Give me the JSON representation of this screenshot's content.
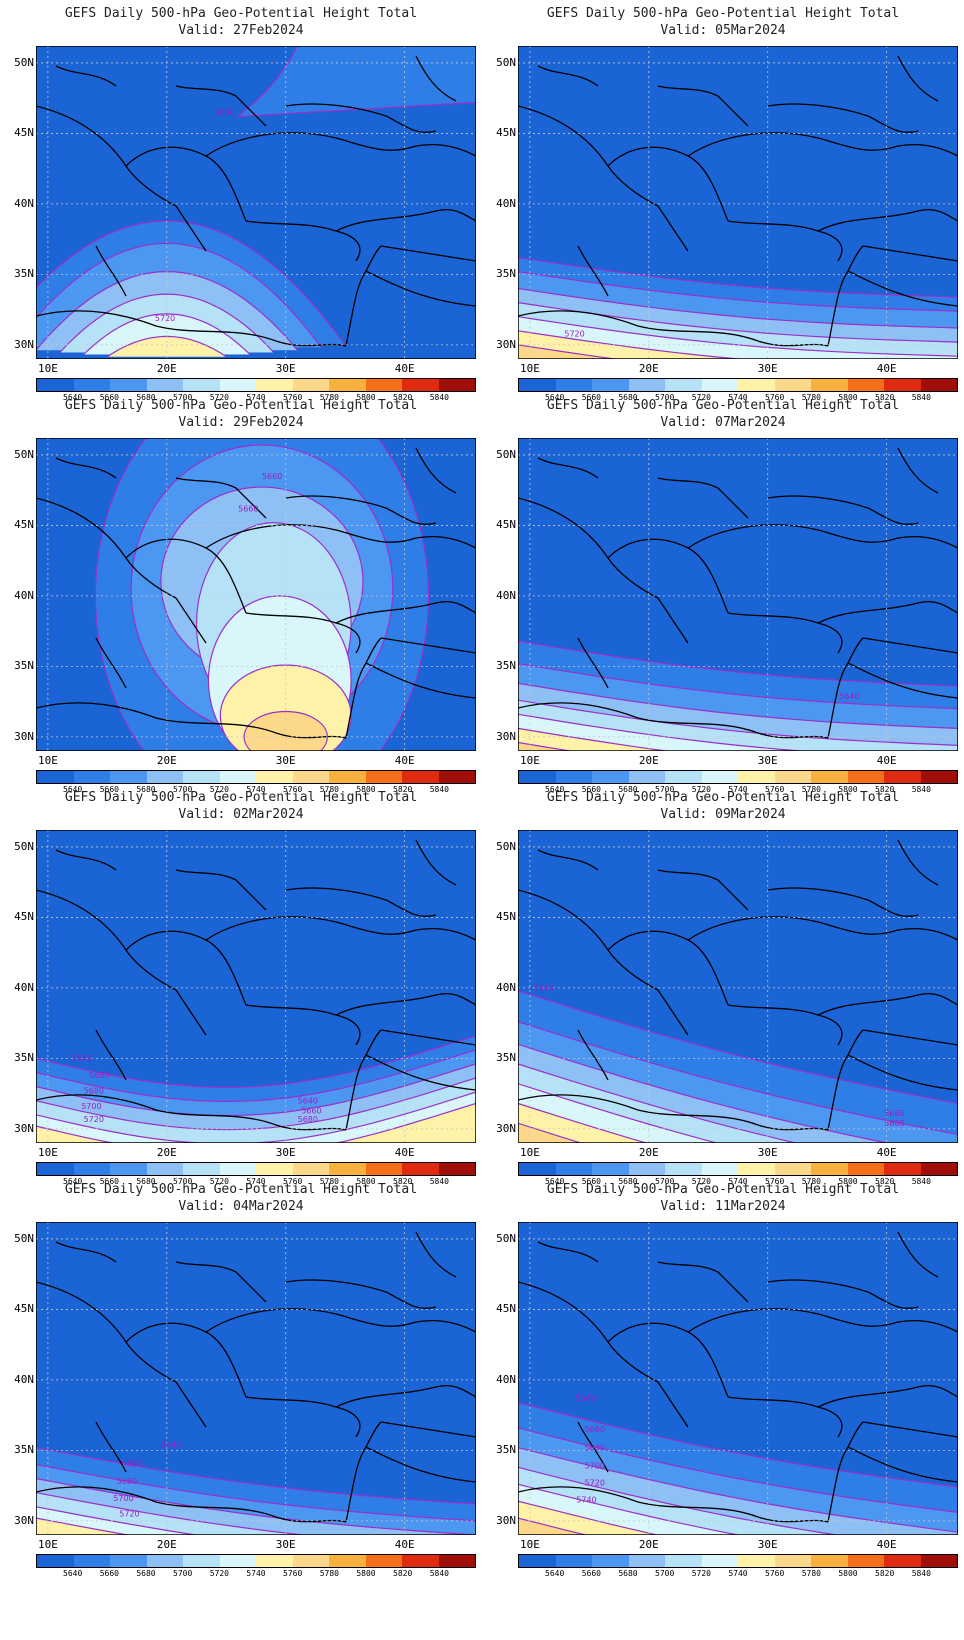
{
  "figure": {
    "panel_title": "GEFS Daily 500-hPa Geo-Potential Height Total",
    "lat_ticks": [
      "50N",
      "45N",
      "40N",
      "35N",
      "30N"
    ],
    "lon_ticks": [
      "10E",
      "20E",
      "30E",
      "40E"
    ],
    "colorbar": {
      "levels": [
        "5640",
        "5660",
        "5680",
        "5700",
        "5720",
        "5740",
        "5760",
        "5780",
        "5800",
        "5820",
        "5840"
      ],
      "colors": [
        "#1a64d6",
        "#2f7ee8",
        "#4b97f2",
        "#8fc0f5",
        "#b6e2f8",
        "#d9f6fb",
        "#fdf2a8",
        "#fcd98a",
        "#f8b040",
        "#f56f18",
        "#e02a10",
        "#a00e0a"
      ]
    }
  },
  "panels": [
    {
      "valid": "Valid: 27Feb2024",
      "labels": [
        {
          "text": "5660",
          "x": 24,
          "y": 46.3
        },
        {
          "text": "5720",
          "x": 19,
          "y": 31.7
        }
      ]
    },
    {
      "valid": "Valid: 05Mar2024",
      "labels": [
        {
          "text": "5720",
          "x": 12.9,
          "y": 30.6
        }
      ]
    },
    {
      "valid": "Valid: 29Feb2024",
      "labels": [
        {
          "text": "5660",
          "x": 28,
          "y": 48.3
        },
        {
          "text": "5660",
          "x": 26,
          "y": 46.0
        }
      ]
    },
    {
      "valid": "Valid: 07Mar2024",
      "labels": [
        {
          "text": "5640",
          "x": 36,
          "y": 32.7
        }
      ]
    },
    {
      "valid": "Valid: 02Mar2024",
      "labels": [
        {
          "text": "5640",
          "x": 12,
          "y": 34.8
        },
        {
          "text": "5660",
          "x": 13.5,
          "y": 33.6
        },
        {
          "text": "5680",
          "x": 13,
          "y": 32.5
        },
        {
          "text": "5700",
          "x": 12.8,
          "y": 31.4
        },
        {
          "text": "5720",
          "x": 13,
          "y": 30.5
        },
        {
          "text": "5640",
          "x": 31,
          "y": 31.8
        },
        {
          "text": "5660",
          "x": 31.3,
          "y": 31.1
        },
        {
          "text": "5680",
          "x": 31,
          "y": 30.5
        }
      ]
    },
    {
      "valid": "Valid: 09Mar2024",
      "labels": [
        {
          "text": "5640",
          "x": 10.3,
          "y": 39.8
        },
        {
          "text": "5660",
          "x": 39.8,
          "y": 30.9
        },
        {
          "text": "5680",
          "x": 39.8,
          "y": 30.2
        }
      ]
    },
    {
      "valid": "Valid: 04Mar2024",
      "labels": [
        {
          "text": "5640",
          "x": 19.5,
          "y": 35.2
        },
        {
          "text": "5660",
          "x": 16.2,
          "y": 33.9
        },
        {
          "text": "5680",
          "x": 15.8,
          "y": 32.6
        },
        {
          "text": "5700",
          "x": 15.5,
          "y": 31.4
        },
        {
          "text": "5720",
          "x": 16,
          "y": 30.3
        }
      ]
    },
    {
      "valid": "Valid: 11Mar2024",
      "labels": [
        {
          "text": "5640",
          "x": 13.8,
          "y": 38.5
        },
        {
          "text": "5660",
          "x": 14.6,
          "y": 36.3
        },
        {
          "text": "5680",
          "x": 14.6,
          "y": 35.0
        },
        {
          "text": "5700",
          "x": 14.6,
          "y": 33.7
        },
        {
          "text": "5720",
          "x": 14.6,
          "y": 32.5
        },
        {
          "text": "5740",
          "x": 13.9,
          "y": 31.3
        }
      ]
    }
  ]
}
